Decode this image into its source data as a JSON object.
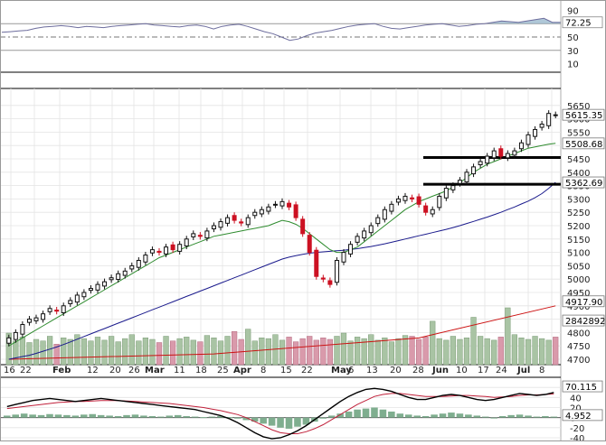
{
  "chart_data": {
    "type": "candlestick",
    "title": "",
    "colors": {
      "up_candle": "#111111",
      "down_candle": "#cc1122",
      "sma_fast": "#2e8b2e",
      "sma_slow": "#1a1a8c",
      "volume_up": "#a9c4a4",
      "volume_down": "#d99aab",
      "volume_ma": "#cc1111",
      "rsi_line": "#6d6d9d",
      "rsi_fill": "#8fb0c8",
      "macd_line": "#000000",
      "macd_signal": "#c0203a",
      "macd_hist": "#7fae8f",
      "grid": "#e4e4e4",
      "support_line": "#000000"
    },
    "x_tick_labels": [
      "16",
      "22",
      "Feb",
      "12",
      "20",
      "26",
      "Mar",
      "11",
      "18",
      "25",
      "Apr",
      "8",
      "15",
      "22",
      "May",
      "6",
      "13",
      "20",
      "28",
      "Jun",
      "10",
      "17",
      "24",
      "Jul",
      "8"
    ],
    "x_tick_month_labels": [
      "Feb",
      "Mar",
      "Apr",
      "May",
      "Jun",
      "Jul"
    ],
    "rsi": {
      "ylim": [
        0,
        100
      ],
      "ticks": [
        "90",
        "70",
        "50",
        "30",
        "10"
      ],
      "overbought": 70,
      "oversold": 30,
      "last_value": "72.25",
      "values": [
        57,
        58,
        59,
        60,
        63,
        65,
        66,
        67,
        66,
        64,
        66,
        65,
        64,
        66,
        67,
        68,
        69,
        70,
        68,
        67,
        66,
        65,
        67,
        68,
        66,
        62,
        66,
        68,
        69,
        66,
        62,
        58,
        55,
        50,
        45,
        47,
        52,
        56,
        58,
        60,
        63,
        66,
        68,
        69,
        70,
        66,
        63,
        62,
        64,
        66,
        68,
        69,
        70,
        68,
        66,
        67,
        69,
        70,
        72,
        74,
        73,
        72,
        74,
        76,
        78,
        72,
        72
      ]
    },
    "price": {
      "ylim": [
        4700,
        5700
      ],
      "ticks": [
        "5650",
        "5600",
        "5550",
        "5500",
        "5450",
        "5400",
        "5350",
        "5300",
        "5250",
        "5200",
        "5150",
        "5100",
        "5050",
        "5000",
        "4950",
        "4900",
        "4850",
        "4800",
        "4750",
        "4700"
      ],
      "last_price": "5615.35",
      "sma50_value": "5508.68",
      "sma200_value": "5362.69",
      "volume_ma_value": "4917.90",
      "volume_value": "2842892",
      "support_levels": [
        5455,
        5355
      ],
      "closes": [
        4780,
        4800,
        4830,
        4850,
        4855,
        4870,
        4890,
        4880,
        4900,
        4920,
        4940,
        4950,
        4965,
        4980,
        4990,
        5005,
        5020,
        5030,
        5050,
        5070,
        5090,
        5110,
        5100,
        5120,
        5110,
        5130,
        5150,
        5170,
        5160,
        5180,
        5200,
        5215,
        5230,
        5220,
        5210,
        5230,
        5250,
        5260,
        5270,
        5280,
        5290,
        5270,
        5230,
        5170,
        5100,
        5010,
        5000,
        4980,
        5070,
        5100,
        5130,
        5160,
        5180,
        5200,
        5230,
        5260,
        5280,
        5300,
        5310,
        5300,
        5280,
        5250,
        5260,
        5310,
        5340,
        5350,
        5370,
        5400,
        5420,
        5440,
        5460,
        5480,
        5460,
        5470,
        5480,
        5510,
        5540,
        5560,
        5580,
        5620,
        5615
      ],
      "sma50": [
        4750,
        4765,
        4780,
        4795,
        4810,
        4825,
        4840,
        4855,
        4870,
        4885,
        4900,
        4915,
        4930,
        4945,
        4960,
        4975,
        4990,
        5005,
        5020,
        5035,
        5050,
        5065,
        5080,
        5090,
        5100,
        5110,
        5120,
        5130,
        5140,
        5150,
        5160,
        5165,
        5170,
        5175,
        5180,
        5185,
        5190,
        5195,
        5200,
        5210,
        5220,
        5215,
        5205,
        5190,
        5170,
        5150,
        5130,
        5110,
        5100,
        5100,
        5110,
        5120,
        5140,
        5160,
        5180,
        5200,
        5220,
        5240,
        5260,
        5275,
        5290,
        5300,
        5310,
        5320,
        5330,
        5345,
        5360,
        5380,
        5400,
        5415,
        5430,
        5440,
        5450,
        5460,
        5470,
        5480,
        5490,
        5495,
        5500,
        5505,
        5508
      ],
      "sma200": [
        4700,
        4705,
        4710,
        4715,
        4722,
        4730,
        4738,
        4746,
        4755,
        4765,
        4775,
        4785,
        4795,
        4805,
        4815,
        4825,
        4835,
        4845,
        4855,
        4865,
        4875,
        4885,
        4895,
        4905,
        4915,
        4925,
        4935,
        4945,
        4955,
        4965,
        4975,
        4985,
        4995,
        5005,
        5015,
        5025,
        5035,
        5045,
        5055,
        5065,
        5075,
        5082,
        5088,
        5093,
        5097,
        5100,
        5102,
        5104,
        5106,
        5108,
        5111,
        5114,
        5118,
        5122,
        5127,
        5132,
        5138,
        5144,
        5150,
        5156,
        5162,
        5168,
        5174,
        5180,
        5186,
        5193,
        5200,
        5208,
        5216,
        5224,
        5232,
        5241,
        5250,
        5260,
        5270,
        5281,
        5292,
        5305,
        5320,
        5340,
        5362
      ]
    },
    "volume": {
      "values": [
        40,
        30,
        35,
        28,
        32,
        30,
        36,
        26,
        34,
        32,
        38,
        33,
        30,
        35,
        31,
        36,
        29,
        33,
        38,
        30,
        34,
        32,
        28,
        36,
        30,
        33,
        35,
        31,
        29,
        37,
        34,
        30,
        36,
        42,
        32,
        45,
        30,
        34,
        33,
        38,
        31,
        35,
        29,
        33,
        36,
        31,
        34,
        32,
        36,
        40,
        30,
        35,
        33,
        38,
        31,
        34,
        29,
        33,
        37,
        36,
        32,
        35,
        55,
        33,
        31,
        36,
        32,
        34,
        60,
        36,
        33,
        31,
        35,
        72,
        38,
        34,
        32,
        36,
        33,
        31,
        35
      ],
      "ma_start": 4850,
      "ma_end": 4917.9
    },
    "macd": {
      "ylim": [
        -40,
        80
      ],
      "ticks": [
        "60",
        "40",
        "20",
        "0",
        "-20",
        "-40"
      ],
      "last_value": "70.115",
      "hist_last": "4.952"
    }
  }
}
